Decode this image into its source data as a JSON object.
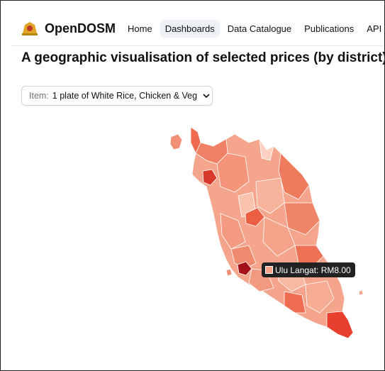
{
  "header": {
    "brand": "OpenDOSM",
    "nav": [
      "Home",
      "Dashboards",
      "Data Catalogue",
      "Publications",
      "API D"
    ]
  },
  "title": "A geographic visualisation of selected prices (by district)",
  "dropdown": {
    "label": "Item:",
    "value": "1 plate of White Rice, Chicken & Veg"
  },
  "tooltip": {
    "text": "Ulu Langat: RM8.00"
  }
}
